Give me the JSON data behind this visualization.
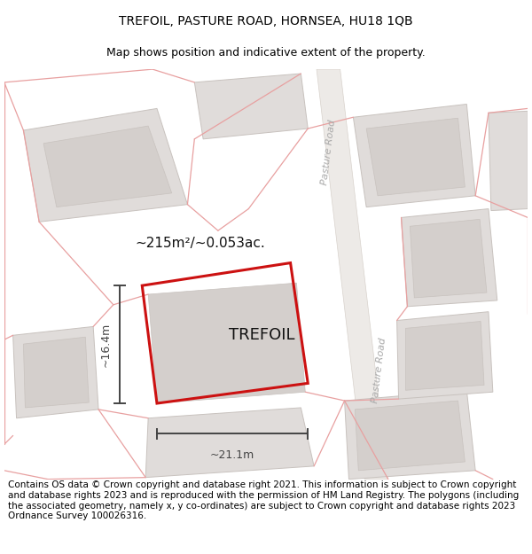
{
  "title_line1": "TREFOIL, PASTURE ROAD, HORNSEA, HU18 1QB",
  "title_line2": "Map shows position and indicative extent of the property.",
  "footer_text": "Contains OS data © Crown copyright and database right 2021. This information is subject to Crown copyright and database rights 2023 and is reproduced with the permission of HM Land Registry. The polygons (including the associated geometry, namely x, y co-ordinates) are subject to Crown copyright and database rights 2023 Ordnance Survey 100026316.",
  "area_label": "~215m²/~0.053ac.",
  "property_label": "TREFOIL",
  "width_label": "~21.1m",
  "height_label": "~16.4m",
  "road_label_top": "Pasture Road",
  "road_label_bot": "Pasture Road",
  "map_bg": "#f8f6f4",
  "road_fill": "#edeae7",
  "road_edge": "#d8d2cc",
  "bld_fill": "#e0dcda",
  "bld_edge": "#c8c2be",
  "bld_inner_fill": "#d4cfcc",
  "red_color": "#cc1111",
  "pink_color": "#e8a0a0",
  "dark_color": "#444444",
  "road_text_color": "#aaaaaa",
  "title_fontsize": 10,
  "subtitle_fontsize": 9,
  "footer_fontsize": 7.5,
  "area_fontsize": 11,
  "property_fontsize": 13,
  "dim_fontsize": 9,
  "road_fontsize": 8
}
